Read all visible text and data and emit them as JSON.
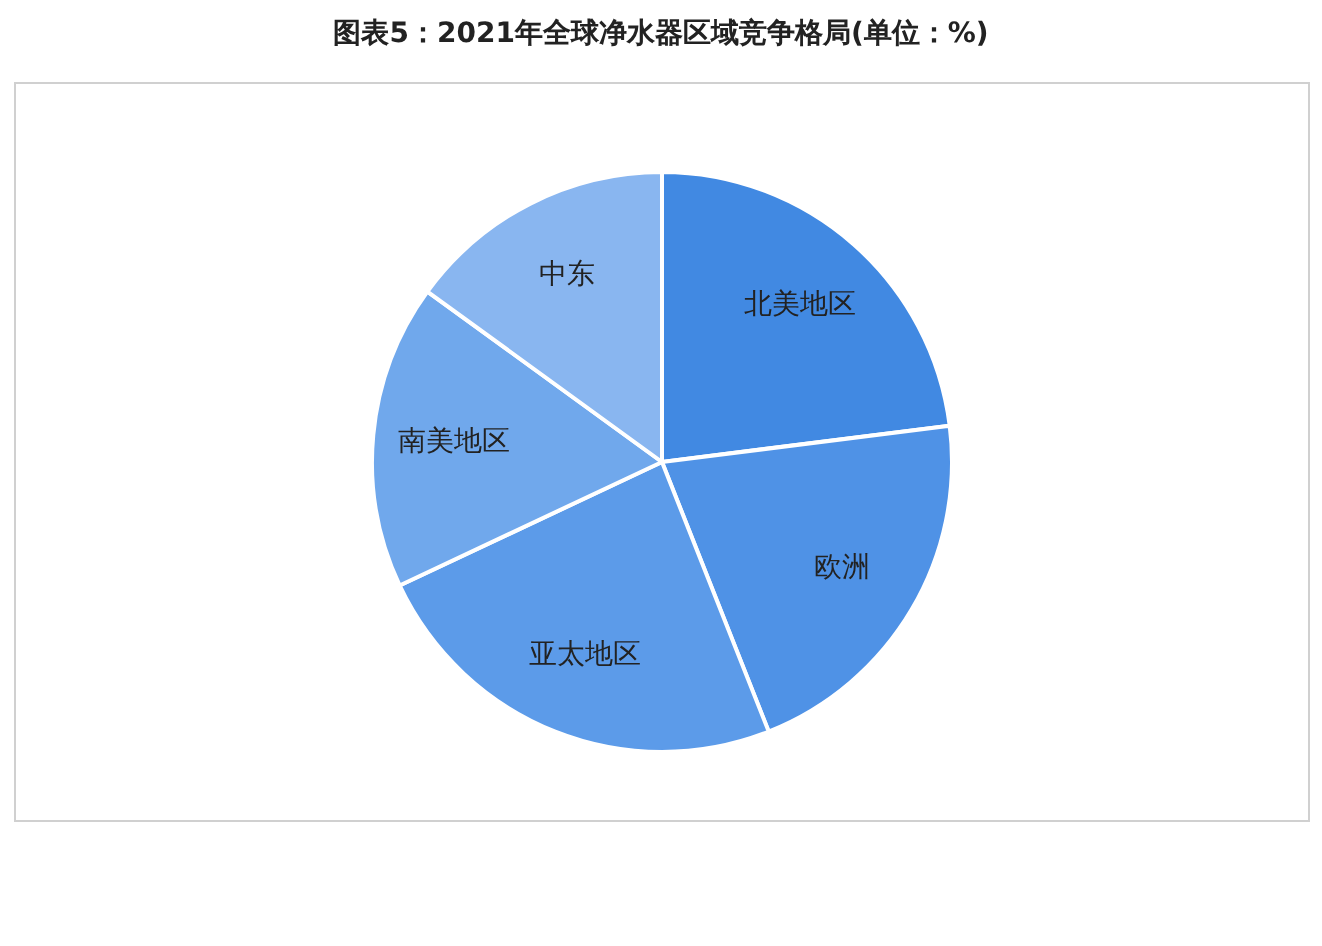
{
  "chart_data": {
    "type": "pie",
    "title": "图表5：2021年全球净水器区域竞争格局(单位：%)",
    "categories": [
      "北美地区",
      "欧洲",
      "亚太地区",
      "南美地区",
      "中东"
    ],
    "values": [
      23,
      21,
      24,
      17,
      15
    ],
    "colors": [
      "#4189e2",
      "#4f92e6",
      "#5c9be9",
      "#70a8ec",
      "#89b6f0"
    ],
    "legend": false
  }
}
